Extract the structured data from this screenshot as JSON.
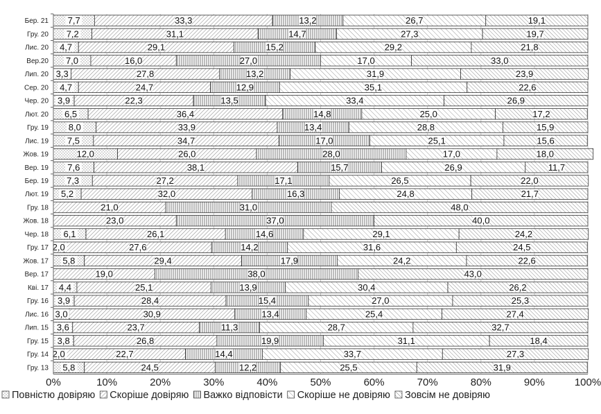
{
  "chart_data": {
    "type": "bar",
    "orientation": "horizontal",
    "stacked": true,
    "percent_stacked": true,
    "title": "",
    "xlabel": "",
    "ylabel": "",
    "xlim": [
      0,
      100
    ],
    "x_ticks": [
      "0%",
      "10%",
      "20%",
      "30%",
      "40%",
      "50%",
      "60%",
      "70%",
      "80%",
      "90%",
      "100%"
    ],
    "grid": true,
    "legend_position": "bottom",
    "categories": [
      "Бер. 21",
      "Гру. 20",
      "Лис. 20",
      "Вер.20",
      "Лип. 20",
      "Сер. 20",
      "Чер. 20",
      "Лют. 20",
      "Гру. 19",
      "Лис. 19",
      "Жов. 19",
      "Вер. 19",
      "Бер. 19",
      "Лют. 19",
      "Гру. 18",
      "Жов. 18",
      "Чер. 18",
      "Гру. 17",
      "Жов. 17",
      "Вер. 17",
      "Кві. 17",
      "Гру. 16",
      "Лис. 16",
      "Лип. 15",
      "Гру. 15",
      "Гру. 14",
      "Гру. 13"
    ],
    "series": [
      {
        "name": "Повністю довіряю",
        "pattern": "dots",
        "values": [
          7.7,
          7.2,
          4.7,
          7.0,
          3.3,
          4.7,
          3.9,
          6.5,
          8.0,
          7.5,
          12.0,
          7.6,
          7.3,
          5.2,
          null,
          null,
          6.1,
          2.0,
          5.8,
          null,
          4.4,
          3.9,
          3.0,
          3.6,
          3.8,
          2.0,
          5.8
        ]
      },
      {
        "name": "Скоріше довіряю",
        "pattern": "diagonal-up",
        "values": [
          33.3,
          31.1,
          29.1,
          16.0,
          27.8,
          24.7,
          22.3,
          36.4,
          33.9,
          34.7,
          26.0,
          38.1,
          27.2,
          32.0,
          21.0,
          23.0,
          26.1,
          27.6,
          29.4,
          19.0,
          25.1,
          28.4,
          30.9,
          23.7,
          26.8,
          22.7,
          24.5
        ]
      },
      {
        "name": "Важко відповісти",
        "pattern": "vertical",
        "values": [
          13.2,
          14.7,
          15.2,
          27.0,
          13.2,
          12.9,
          13.5,
          14.8,
          13.4,
          17.0,
          28.0,
          15.7,
          17.1,
          16.3,
          31.0,
          37.0,
          14.6,
          14.2,
          17.9,
          38.0,
          13.9,
          15.4,
          13.4,
          11.3,
          19.9,
          14.4,
          12.2
        ]
      },
      {
        "name": "Скоріше  не довіряю",
        "pattern": "diagonal-down",
        "values": [
          26.7,
          27.3,
          29.2,
          17.0,
          31.9,
          35.1,
          33.4,
          25.0,
          28.8,
          25.1,
          17.0,
          26.9,
          26.5,
          24.8,
          null,
          null,
          29.1,
          31.6,
          24.2,
          null,
          30.4,
          27.0,
          25.4,
          28.7,
          31.1,
          33.7,
          25.5
        ]
      },
      {
        "name": "Зовсім не довіряю",
        "pattern": "diagonal-down-dense",
        "values": [
          19.1,
          19.7,
          21.8,
          33.0,
          23.9,
          22.6,
          26.9,
          17.2,
          15.9,
          15.6,
          18.0,
          11.7,
          22.0,
          21.7,
          48.0,
          40.0,
          24.2,
          24.5,
          22.6,
          43.0,
          26.2,
          25.3,
          27.4,
          32.7,
          18.4,
          27.3,
          31.9
        ]
      }
    ]
  }
}
